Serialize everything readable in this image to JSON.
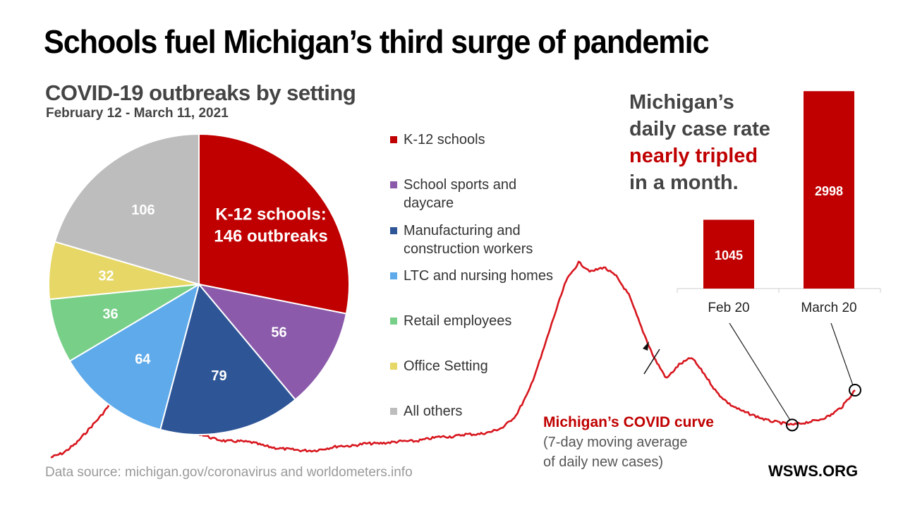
{
  "title": "Schools fuel Michigan’s third surge of pandemic",
  "chart_data": [
    {
      "type": "pie",
      "title": "COVID-19 outbreaks by setting",
      "subtitle": "February 12 - March 11, 2021",
      "legend_position": "right",
      "slices": [
        {
          "label": "K-12 schools",
          "value": 146,
          "color": "#c00000",
          "data_label": "K-12 schools:\n146 outbreaks"
        },
        {
          "label": "School sports and daycare",
          "value": 56,
          "color": "#8b5aab",
          "data_label": "56"
        },
        {
          "label": "Manufacturing and construction workers",
          "value": 79,
          "color": "#2e5596",
          "data_label": "79"
        },
        {
          "label": "LTC and nursing homes",
          "value": 64,
          "color": "#5eaaea",
          "data_label": "64"
        },
        {
          "label": "Retail employees",
          "value": 36,
          "color": "#77cf88",
          "data_label": "36"
        },
        {
          "label": "Office Setting",
          "value": 32,
          "color": "#e6d766",
          "data_label": "32"
        },
        {
          "label": "All others",
          "value": 106,
          "color": "#bdbdbd",
          "data_label": "106"
        }
      ]
    },
    {
      "type": "bar",
      "title": "Michigan’s daily case rate nearly tripled in a month.",
      "categories": [
        "Feb 20",
        "March 20"
      ],
      "values": [
        1045,
        2998
      ],
      "color": "#c00000",
      "ylim": [
        0,
        3000
      ]
    },
    {
      "type": "line",
      "title": "Michigan’s COVID curve",
      "subtitle": "(7-day moving average of daily new cases)",
      "color": "#d7161e",
      "relative_values": [
        0.02,
        0.04,
        0.08,
        0.14,
        0.2,
        0.27,
        0.22,
        0.19,
        0.16,
        0.15,
        0.14,
        0.13,
        0.12,
        0.1,
        0.09,
        0.09,
        0.085,
        0.07,
        0.06,
        0.055,
        0.05,
        0.05,
        0.06,
        0.07,
        0.07,
        0.08,
        0.08,
        0.085,
        0.09,
        0.09,
        0.1,
        0.11,
        0.11,
        0.12,
        0.12,
        0.13,
        0.15,
        0.2,
        0.3,
        0.45,
        0.62,
        0.78,
        0.86,
        0.82,
        0.84,
        0.8,
        0.72,
        0.58,
        0.45,
        0.36,
        0.42,
        0.45,
        0.38,
        0.3,
        0.25,
        0.22,
        0.2,
        0.18,
        0.17,
        0.16,
        0.17,
        0.18,
        0.2,
        0.24,
        0.31
      ],
      "markers": [
        {
          "label": "Feb 20",
          "index": 59
        },
        {
          "label": "March 20",
          "index": 64
        }
      ]
    }
  ],
  "callout": {
    "line1": "Michigan’s",
    "line2": "daily case rate",
    "line3_highlight": "nearly tripled",
    "line4": "in a month."
  },
  "curve_label": {
    "title": "Michigan’s COVID curve",
    "line2": "(7-day moving average",
    "line3": "of daily new cases)"
  },
  "source": "Data source: michigan.gov/coronavirus and worldometers.info",
  "brand": "WSWS.ORG"
}
